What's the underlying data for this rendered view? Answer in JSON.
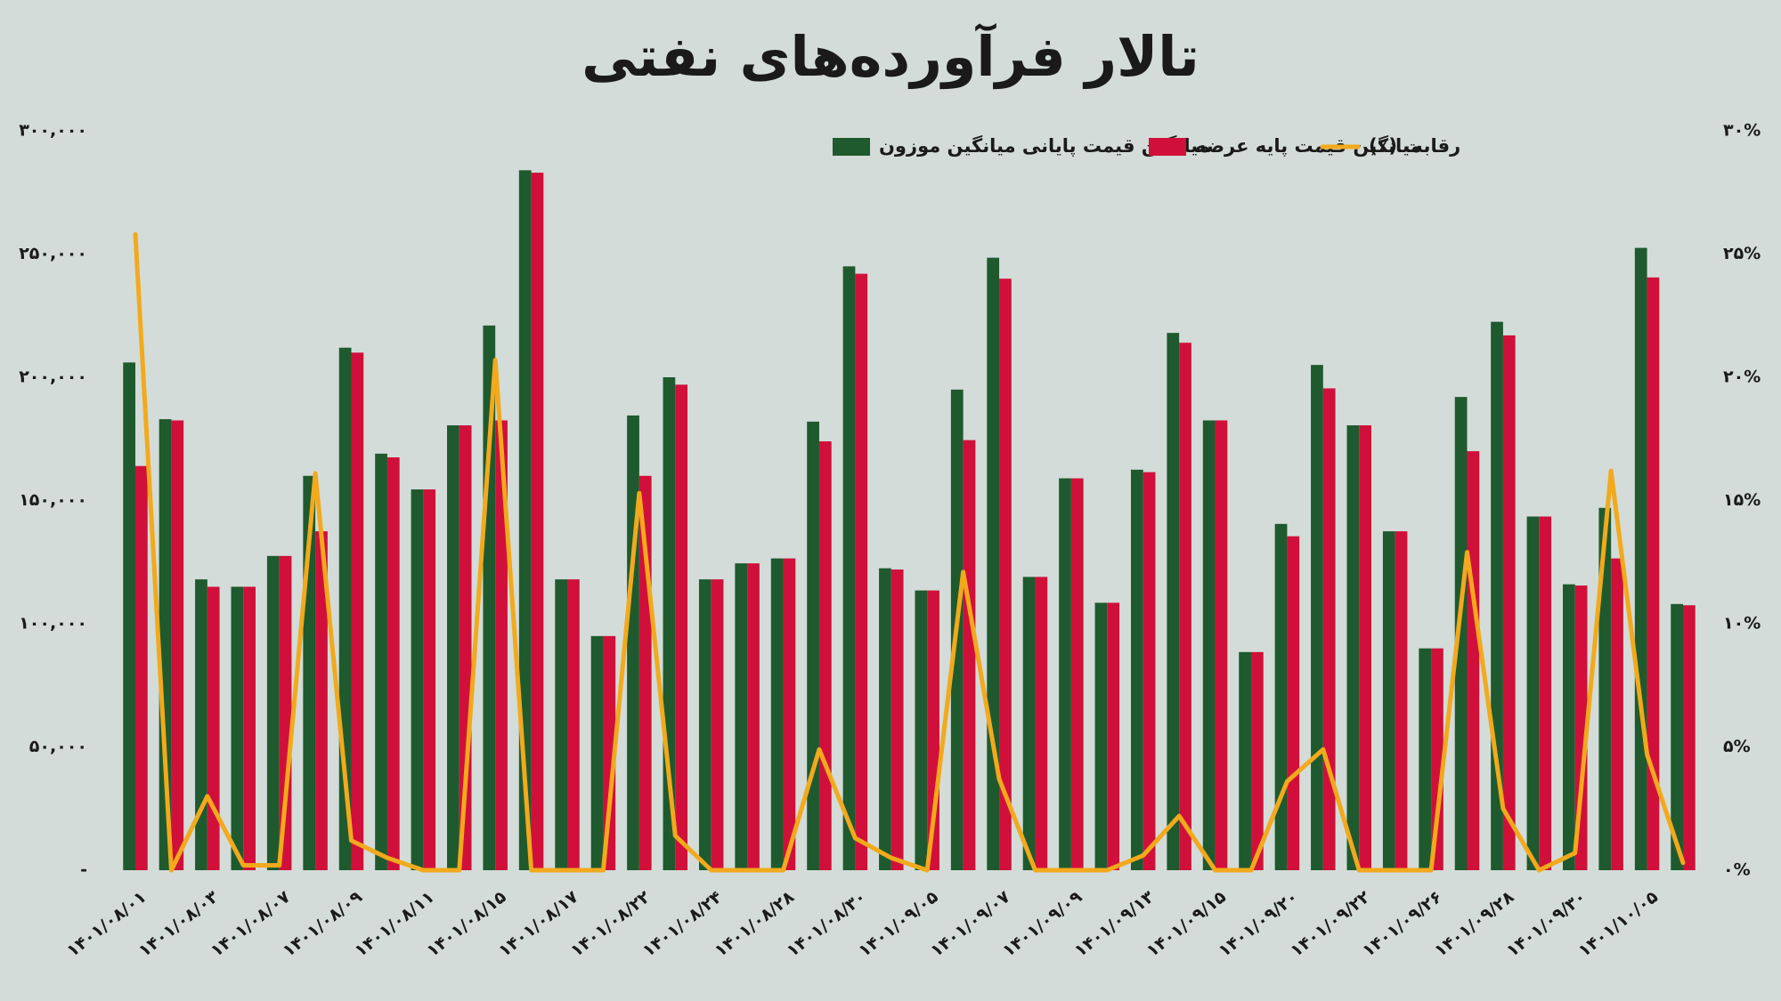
{
  "chart_data": {
    "type": "bar-line",
    "title": "تالار فرآورده‌های نفتی",
    "categories": [
      "۱۴۰۱/۰۸/۰۱",
      null,
      "۱۴۰۱/۰۸/۰۳",
      null,
      "۱۴۰۱/۰۸/۰۷",
      null,
      "۱۴۰۱/۰۸/۰۹",
      null,
      "۱۴۰۱/۰۸/۱۱",
      null,
      "۱۴۰۱/۰۸/۱۵",
      null,
      "۱۴۰۱/۰۸/۱۷",
      null,
      "۱۴۰۱/۰۸/۲۲",
      null,
      "۱۴۰۱/۰۸/۲۴",
      null,
      "۱۴۰۱/۰۸/۲۸",
      null,
      "۱۴۰۱/۰۸/۳۰",
      null,
      "۱۴۰۱/۰۹/۰۵",
      null,
      "۱۴۰۱/۰۹/۰۷",
      null,
      "۱۴۰۱/۰۹/۰۹",
      null,
      "۱۴۰۱/۰۹/۱۳",
      null,
      "۱۴۰۱/۰۹/۱۵",
      null,
      "۱۴۰۱/۰۹/۲۰",
      null,
      "۱۴۰۱/۰۹/۲۲",
      null,
      "۱۴۰۱/۰۹/۲۶",
      null,
      "۱۴۰۱/۰۹/۲۸",
      null,
      "۱۴۰۱/۰۹/۳۰",
      null,
      "۱۴۰۱/۱۰/۰۵",
      null
    ],
    "series": [
      {
        "name": "میانگین قیمت پایانی میانگین موزون",
        "color": "#1e5a2e",
        "kind": "bar",
        "values": [
          206000,
          183000,
          118000,
          115000,
          127500,
          160000,
          212000,
          169000,
          154500,
          180500,
          221000,
          284000,
          118000,
          95000,
          184500,
          200000,
          118000,
          124500,
          126500,
          182000,
          245000,
          122500,
          113500,
          195000,
          248500,
          119000,
          159000,
          108500,
          162500,
          218000,
          182500,
          88500,
          140500,
          205000,
          180500,
          137500,
          90000,
          192000,
          222500,
          143500,
          116000,
          147000,
          252500,
          108000
        ]
      },
      {
        "name": "میانگین قیمت پایه عرضه",
        "color": "#d0103a",
        "kind": "bar",
        "values": [
          164000,
          182500,
          115000,
          115000,
          127500,
          137500,
          210000,
          167500,
          154500,
          180500,
          182500,
          283000,
          118000,
          95000,
          160000,
          197000,
          118000,
          124500,
          126500,
          174000,
          242000,
          122000,
          113500,
          174500,
          240000,
          119000,
          159000,
          108500,
          161500,
          214000,
          182500,
          88500,
          135500,
          195500,
          180500,
          137500,
          90000,
          170000,
          217000,
          143500,
          115500,
          126500,
          240500,
          107500
        ]
      },
      {
        "name": "رقابت (٪)",
        "color": "#f2a91c",
        "kind": "line",
        "axis": "y2",
        "values": [
          25.8,
          0,
          3.0,
          0.2,
          0.2,
          16.1,
          1.2,
          0.5,
          0,
          0,
          20.7,
          0,
          0,
          0,
          15.3,
          1.4,
          0,
          0,
          0,
          4.9,
          1.3,
          0.5,
          0,
          12.1,
          3.7,
          0,
          0,
          0,
          0.6,
          2.2,
          0,
          0,
          3.6,
          4.9,
          0,
          0,
          0,
          12.9,
          2.5,
          0,
          0.7,
          16.2,
          4.7,
          0.3
        ]
      }
    ],
    "ylim": [
      0,
      300000
    ],
    "yticks": [
      {
        "value": 0,
        "label": "-"
      },
      {
        "value": 50000,
        "label": "۵۰,۰۰۰"
      },
      {
        "value": 100000,
        "label": "۱۰۰,۰۰۰"
      },
      {
        "value": 150000,
        "label": "۱۵۰,۰۰۰"
      },
      {
        "value": 200000,
        "label": "۲۰۰,۰۰۰"
      },
      {
        "value": 250000,
        "label": "۲۵۰,۰۰۰"
      },
      {
        "value": 300000,
        "label": "۳۰۰,۰۰۰"
      }
    ],
    "y2lim": [
      0,
      30
    ],
    "y2ticks": [
      {
        "value": 0,
        "label": "۰%"
      },
      {
        "value": 5,
        "label": "۵%"
      },
      {
        "value": 10,
        "label": "۱۰%"
      },
      {
        "value": 15,
        "label": "۱۵%"
      },
      {
        "value": 20,
        "label": "۲۰%"
      },
      {
        "value": 25,
        "label": "۲۵%"
      },
      {
        "value": 30,
        "label": "۳۰%"
      }
    ],
    "legend": "top",
    "grid": false
  }
}
